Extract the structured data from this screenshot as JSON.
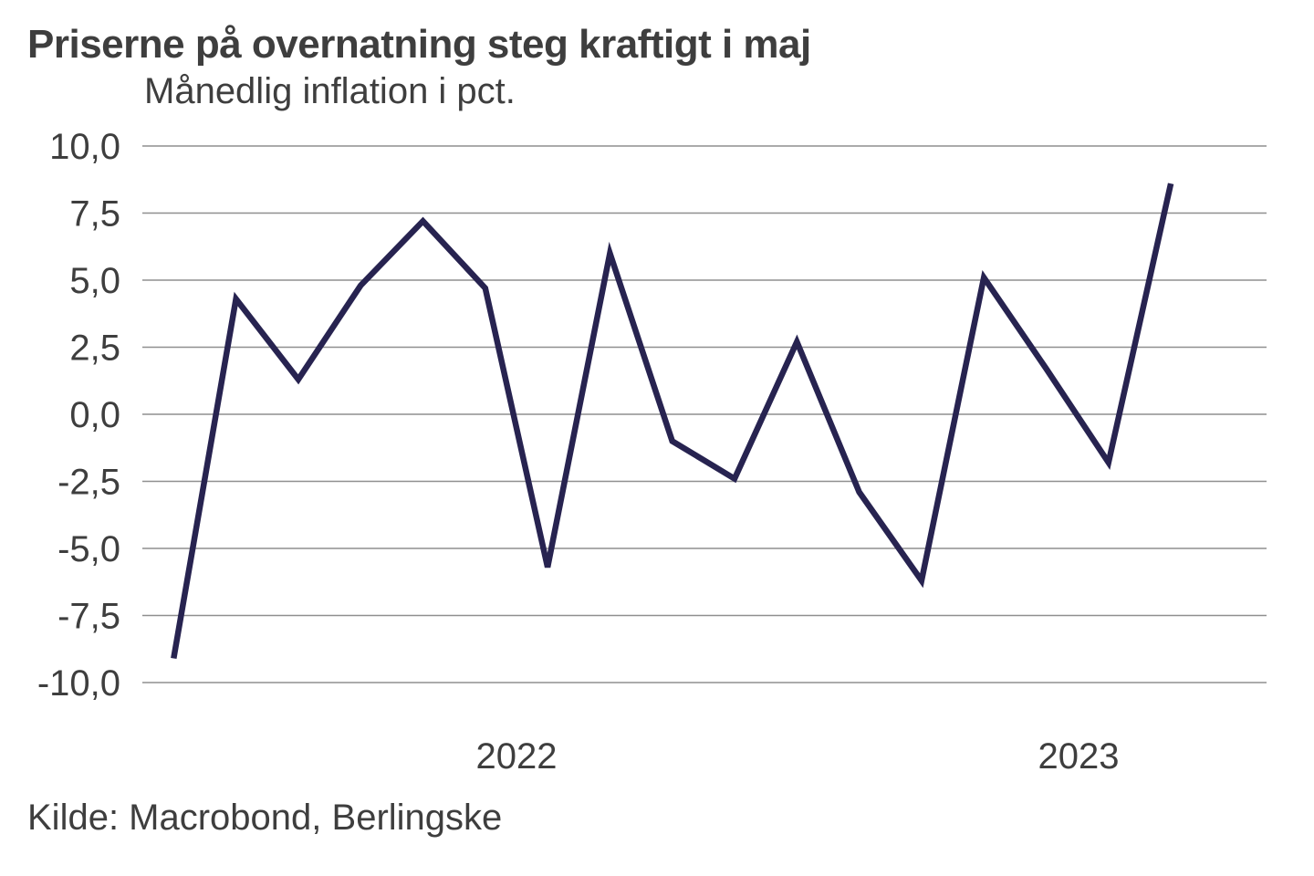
{
  "header": {
    "title": "Priserne på overnatning steg kraftigt i maj",
    "subtitle": "Månedlig inflation i pct."
  },
  "footer": {
    "source": "Kilde: Macrobond, Berlingske"
  },
  "chart_data": {
    "type": "line",
    "title": "Priserne på overnatning steg kraftigt i maj",
    "subtitle": "Månedlig inflation i pct.",
    "source": "Kilde: Macrobond, Berlingske",
    "x": [
      "jan 2022",
      "feb 2022",
      "mar 2022",
      "apr 2022",
      "maj 2022",
      "jun 2022",
      "jul 2022",
      "aug 2022",
      "sep 2022",
      "okt 2022",
      "nov 2022",
      "dec 2022",
      "jan 2023",
      "feb 2023",
      "mar 2023",
      "apr 2023",
      "maj 2023"
    ],
    "values": [
      -9.1,
      4.3,
      1.3,
      4.8,
      7.2,
      4.7,
      -5.7,
      6.0,
      -1.0,
      -2.4,
      2.7,
      -2.9,
      -6.2,
      5.1,
      1.7,
      -1.8,
      8.6
    ],
    "ylabel": "pct.",
    "ylim": [
      -10,
      10
    ],
    "ytick_step": 2.5,
    "ytick_labels": [
      "10,0",
      "7,5",
      "5,0",
      "2,5",
      "0,0",
      "-2,5",
      "-5,0",
      "-7,5",
      "-10,0"
    ],
    "xtick_labels": [
      "2022",
      "2023"
    ],
    "grid": true,
    "legend": "none",
    "colors": {
      "line": "#272350",
      "gridline": "#8f8f8f",
      "text": "#3e3e3e",
      "background": "#ffffff"
    }
  }
}
